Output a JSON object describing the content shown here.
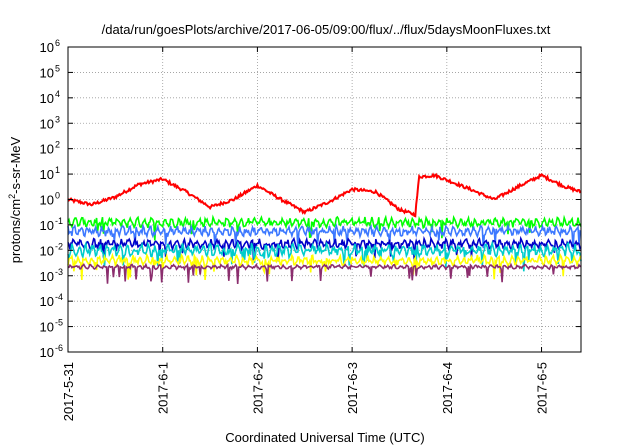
{
  "chart_data": {
    "type": "line",
    "title": "/data/run/goesPlots/archive/2017-06-05/09:00/flux/../flux/5daysMoonFluxes.txt",
    "xlabel": "Coordinated Universal Time (UTC)",
    "ylabel": {
      "main": "protons/cm",
      "sup": "2",
      "rest": "-s-sr-MeV"
    },
    "y_scale": "log",
    "ylim_exponents": [
      -6,
      6
    ],
    "y_ticks": [
      {
        "base": "10",
        "exp": "6"
      },
      {
        "base": "10",
        "exp": "5"
      },
      {
        "base": "10",
        "exp": "4"
      },
      {
        "base": "10",
        "exp": "3"
      },
      {
        "base": "10",
        "exp": "2"
      },
      {
        "base": "10",
        "exp": "1"
      },
      {
        "base": "10",
        "exp": "0"
      },
      {
        "base": "10",
        "exp": "-1"
      },
      {
        "base": "10",
        "exp": "-2"
      },
      {
        "base": "10",
        "exp": "-3"
      },
      {
        "base": "10",
        "exp": "-4"
      },
      {
        "base": "10",
        "exp": "-5"
      },
      {
        "base": "10",
        "exp": "-6"
      }
    ],
    "x_range_days": [
      "2017-05-31 00:00",
      "2017-06-05 10:00"
    ],
    "x_ticks": [
      "2017-5-31",
      "2017-6-1",
      "2017-6-2",
      "2017-6-3",
      "2017-6-4",
      "2017-6-5"
    ],
    "grid": true,
    "legend": "none",
    "series": [
      {
        "color": "#ff0000",
        "approx_level_log10": 0.2,
        "key_points": [
          [
            "2017-05-31 00:00",
            0.0
          ],
          [
            "2017-05-31 06:00",
            -0.2
          ],
          [
            "2017-05-31 12:00",
            0.1
          ],
          [
            "2017-05-31 18:00",
            0.6
          ],
          [
            "2017-06-01 00:00",
            0.8
          ],
          [
            "2017-06-01 06:00",
            0.3
          ],
          [
            "2017-06-01 12:00",
            -0.3
          ],
          [
            "2017-06-01 18:00",
            0.0
          ],
          [
            "2017-06-02 00:00",
            0.55
          ],
          [
            "2017-06-02 06:00",
            0.0
          ],
          [
            "2017-06-02 12:00",
            -0.5
          ],
          [
            "2017-06-02 18:00",
            -0.1
          ],
          [
            "2017-06-03 00:00",
            0.4
          ],
          [
            "2017-06-03 06:00",
            0.3
          ],
          [
            "2017-06-03 12:00",
            -0.4
          ],
          [
            "2017-06-03 16:00",
            -0.6
          ],
          [
            "2017-06-03 17:00",
            0.9
          ],
          [
            "2017-06-03 21:00",
            0.95
          ],
          [
            "2017-06-04 06:00",
            0.4
          ],
          [
            "2017-06-04 12:00",
            0.0
          ],
          [
            "2017-06-04 18:00",
            0.5
          ],
          [
            "2017-06-05 00:00",
            0.95
          ],
          [
            "2017-06-05 06:00",
            0.5
          ],
          [
            "2017-06-05 10:00",
            0.3
          ]
        ]
      },
      {
        "color": "#00ff00",
        "approx_level_log10": -0.9
      },
      {
        "color": "#3c78ff",
        "approx_level_log10": -1.25
      },
      {
        "color": "#0000c8",
        "approx_level_log10": -1.75
      },
      {
        "color": "#00cccc",
        "approx_level_log10": -2.0
      },
      {
        "color": "#ffff00",
        "approx_level_log10": -2.4
      },
      {
        "color": "#8b2e6e",
        "approx_level_log10": -2.65
      }
    ]
  }
}
